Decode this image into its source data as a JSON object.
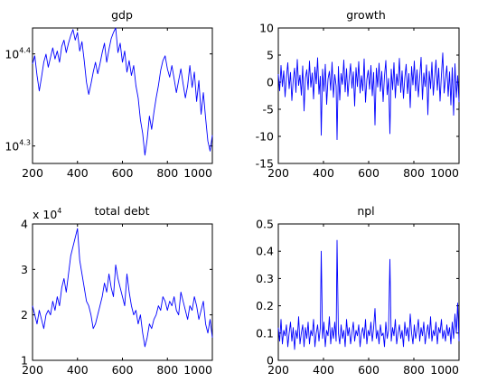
{
  "line_color": "#0000ff",
  "chart_data": [
    {
      "type": "line",
      "title": "gdp",
      "yscale": "log",
      "xlim": [
        200,
        1000
      ],
      "ylim": [
        19100,
        26800
      ],
      "xticks": [
        200,
        400,
        600,
        800,
        1000
      ],
      "xtick_labels": [
        "200",
        "400",
        "600",
        "800",
        "1000"
      ],
      "yticks": [
        {
          "value": 19953,
          "base": "10",
          "exp": "4.3"
        },
        {
          "value": 25119,
          "base": "10",
          "exp": "4.4"
        }
      ],
      "grid": false,
      "series": [
        {
          "x": [
            200,
            210,
            220,
            230,
            240,
            250,
            260,
            270,
            280,
            290,
            300,
            310,
            320,
            330,
            340,
            350,
            360,
            370,
            380,
            390,
            400,
            410,
            420,
            430,
            440,
            450,
            460,
            470,
            480,
            490,
            500,
            510,
            520,
            530,
            540,
            550,
            560,
            570,
            580,
            590,
            600,
            610,
            620,
            630,
            640,
            650,
            660,
            670,
            680,
            690,
            700,
            710,
            720,
            730,
            740,
            750,
            760,
            770,
            780,
            790,
            800,
            810,
            820,
            830,
            840,
            850,
            860,
            870,
            880,
            890,
            900,
            910,
            920,
            930,
            940,
            950,
            960,
            970,
            980,
            990,
            1000
          ],
          "y": [
            24500,
            25000,
            23800,
            22900,
            23700,
            24600,
            25100,
            24300,
            24900,
            25500,
            24800,
            25300,
            24600,
            25600,
            26000,
            25200,
            25800,
            26300,
            26700,
            26000,
            26500,
            25300,
            25900,
            24700,
            23400,
            22700,
            23300,
            24000,
            24600,
            23900,
            24500,
            25200,
            25800,
            24600,
            25400,
            26100,
            26500,
            26800,
            25200,
            25800,
            24600,
            25300,
            24000,
            24700,
            23800,
            24400,
            23200,
            22500,
            21300,
            20600,
            19500,
            20300,
            21500,
            20800,
            21700,
            22500,
            23200,
            24100,
            24700,
            25000,
            24200,
            23700,
            24400,
            23600,
            22800,
            23500,
            24200,
            23300,
            22500,
            23200,
            24400,
            23100,
            24000,
            22300,
            23500,
            21600,
            22800,
            21400,
            20200,
            19700,
            20500
          ]
        }
      ]
    },
    {
      "type": "line",
      "title": "growth",
      "xlim": [
        200,
        1000
      ],
      "ylim": [
        -15,
        10
      ],
      "xticks": [
        200,
        400,
        600,
        800,
        1000
      ],
      "xtick_labels": [
        "200",
        "400",
        "600",
        "800",
        "1000"
      ],
      "yticks": [
        -15,
        -10,
        -5,
        0,
        5,
        10
      ],
      "ytick_labels": [
        "-15",
        "-10",
        "-5",
        "0",
        "5",
        "10"
      ],
      "grid": false,
      "series": [
        {
          "x": [
            200,
            206,
            212,
            218,
            224,
            230,
            236,
            242,
            248,
            254,
            260,
            266,
            272,
            278,
            284,
            290,
            296,
            302,
            308,
            314,
            320,
            326,
            332,
            338,
            344,
            350,
            356,
            362,
            368,
            374,
            380,
            386,
            390,
            396,
            402,
            408,
            414,
            420,
            426,
            432,
            438,
            444,
            450,
            456,
            460,
            466,
            472,
            478,
            484,
            490,
            496,
            502,
            508,
            514,
            520,
            526,
            532,
            538,
            544,
            550,
            556,
            562,
            568,
            574,
            580,
            586,
            592,
            598,
            604,
            610,
            616,
            622,
            628,
            634,
            640,
            646,
            652,
            658,
            664,
            670,
            676,
            682,
            688,
            694,
            700,
            706,
            712,
            718,
            724,
            730,
            736,
            742,
            748,
            754,
            760,
            766,
            772,
            778,
            784,
            790,
            796,
            802,
            808,
            814,
            820,
            826,
            832,
            838,
            844,
            850,
            856,
            862,
            868,
            874,
            880,
            886,
            892,
            898,
            904,
            910,
            916,
            922,
            928,
            934,
            940,
            946,
            952,
            958,
            964,
            970,
            976,
            982,
            988,
            994,
            1000
          ],
          "y": [
            1.5,
            -1.6,
            3.1,
            -0.8,
            2.1,
            -2.7,
            0.9,
            3.6,
            -1.2,
            1.8,
            -3.4,
            0.4,
            2.6,
            -1.9,
            4.2,
            -0.6,
            1.3,
            -2.4,
            3.0,
            -5.3,
            0.8,
            2.3,
            -1.4,
            3.9,
            -0.9,
            1.7,
            -3.1,
            2.8,
            -0.3,
            4.5,
            -2.2,
            1.1,
            -9.8,
            2.4,
            -1.7,
            3.3,
            -4.1,
            0.6,
            2.0,
            -1.5,
            3.7,
            -2.8,
            1.4,
            -0.7,
            -10.6,
            2.9,
            -3.3,
            1.6,
            -0.4,
            4.1,
            -1.8,
            2.5,
            -2.6,
            0.9,
            3.4,
            -1.1,
            1.9,
            -4.4,
            2.7,
            -0.8,
            3.8,
            -2.0,
            1.2,
            -1.6,
            4.3,
            -3.7,
            0.5,
            2.2,
            -1.3,
            3.1,
            -2.5,
            1.8,
            -7.9,
            2.6,
            -0.9,
            3.5,
            -1.7,
            2.0,
            -3.6,
            1.1,
            4.0,
            -2.3,
            0.7,
            -9.5,
            2.4,
            -1.4,
            3.6,
            -2.9,
            1.5,
            -0.6,
            4.4,
            -1.9,
            2.1,
            -3.0,
            0.8,
            3.3,
            -2.1,
            1.6,
            -4.7,
            2.9,
            -0.5,
            3.9,
            -1.6,
            2.3,
            -2.7,
            1.0,
            4.6,
            -3.2,
            1.7,
            -0.8,
            3.2,
            -6.0,
            2.0,
            -1.2,
            3.7,
            -2.4,
            0.9,
            4.1,
            -1.5,
            2.6,
            -3.5,
            1.3,
            5.4,
            -2.0,
            0.6,
            3.0,
            -2.6,
            1.9,
            -4.2,
            2.7,
            -6.1,
            3.4,
            -2.8,
            1.2,
            -3.7
          ]
        }
      ]
    },
    {
      "type": "line",
      "title": "total debt",
      "xlim": [
        200,
        1000
      ],
      "ylim": [
        1,
        4
      ],
      "multiplier": {
        "base": "x 10",
        "exp": "4"
      },
      "xticks": [
        200,
        400,
        600,
        800,
        1000
      ],
      "xtick_labels": [
        "200",
        "400",
        "600",
        "800",
        "1000"
      ],
      "yticks": [
        1,
        2,
        3,
        4
      ],
      "ytick_labels": [
        "1",
        "2",
        "3",
        "4"
      ],
      "grid": false,
      "series": [
        {
          "x": [
            200,
            210,
            220,
            230,
            240,
            250,
            260,
            270,
            280,
            290,
            300,
            310,
            320,
            330,
            340,
            350,
            360,
            370,
            380,
            390,
            400,
            410,
            420,
            430,
            440,
            450,
            460,
            470,
            480,
            490,
            500,
            510,
            520,
            530,
            540,
            550,
            560,
            570,
            580,
            590,
            600,
            610,
            620,
            630,
            640,
            650,
            660,
            670,
            680,
            690,
            700,
            710,
            720,
            730,
            740,
            750,
            760,
            770,
            780,
            790,
            800,
            810,
            820,
            830,
            840,
            850,
            860,
            870,
            880,
            890,
            900,
            910,
            920,
            930,
            940,
            950,
            960,
            970,
            980,
            990,
            1000
          ],
          "y": [
            2.2,
            2.0,
            1.8,
            2.1,
            1.9,
            1.7,
            2.0,
            2.1,
            2.0,
            2.3,
            2.1,
            2.4,
            2.2,
            2.6,
            2.8,
            2.5,
            2.9,
            3.3,
            3.5,
            3.7,
            3.9,
            3.2,
            2.9,
            2.6,
            2.3,
            2.2,
            2.0,
            1.7,
            1.8,
            2.0,
            2.2,
            2.4,
            2.7,
            2.5,
            2.9,
            2.6,
            2.4,
            3.1,
            2.8,
            2.6,
            2.4,
            2.2,
            2.9,
            2.5,
            2.2,
            2.0,
            2.1,
            1.8,
            2.0,
            1.6,
            1.3,
            1.5,
            1.8,
            1.7,
            1.9,
            2.0,
            2.2,
            2.1,
            2.4,
            2.3,
            2.1,
            2.3,
            2.2,
            2.4,
            2.1,
            2.0,
            2.5,
            2.3,
            2.1,
            1.9,
            2.2,
            2.1,
            2.4,
            2.2,
            1.9,
            2.1,
            2.3,
            1.8,
            1.6,
            1.9,
            1.5
          ]
        }
      ]
    },
    {
      "type": "line",
      "title": "npl",
      "xlim": [
        200,
        1000
      ],
      "ylim": [
        0,
        0.5
      ],
      "xticks": [
        200,
        400,
        600,
        800,
        1000
      ],
      "xtick_labels": [
        "200",
        "400",
        "600",
        "800",
        "1000"
      ],
      "yticks": [
        0,
        0.1,
        0.2,
        0.3,
        0.4,
        0.5
      ],
      "ytick_labels": [
        "0",
        "0.1",
        "0.2",
        "0.3",
        "0.4",
        "0.5"
      ],
      "grid": false,
      "series": [
        {
          "x": [
            200,
            206,
            212,
            218,
            224,
            230,
            236,
            242,
            248,
            254,
            260,
            266,
            272,
            278,
            284,
            290,
            296,
            302,
            308,
            314,
            320,
            326,
            332,
            338,
            344,
            350,
            356,
            362,
            368,
            374,
            380,
            386,
            390,
            396,
            402,
            408,
            414,
            420,
            426,
            432,
            438,
            444,
            450,
            456,
            460,
            466,
            472,
            478,
            484,
            490,
            496,
            502,
            508,
            514,
            520,
            526,
            532,
            538,
            544,
            550,
            556,
            562,
            568,
            574,
            580,
            586,
            592,
            598,
            604,
            610,
            616,
            622,
            628,
            634,
            640,
            646,
            652,
            658,
            664,
            670,
            676,
            682,
            688,
            694,
            700,
            706,
            712,
            718,
            724,
            730,
            736,
            742,
            748,
            754,
            760,
            766,
            772,
            778,
            784,
            790,
            796,
            802,
            808,
            814,
            820,
            826,
            832,
            838,
            844,
            850,
            856,
            862,
            868,
            874,
            880,
            886,
            892,
            898,
            904,
            910,
            916,
            922,
            928,
            934,
            940,
            946,
            952,
            958,
            964,
            970,
            976,
            982,
            988,
            994,
            1000
          ],
          "y": [
            0.12,
            0.07,
            0.15,
            0.06,
            0.11,
            0.09,
            0.13,
            0.05,
            0.1,
            0.14,
            0.07,
            0.12,
            0.04,
            0.11,
            0.08,
            0.16,
            0.06,
            0.1,
            0.13,
            0.05,
            0.12,
            0.08,
            0.14,
            0.06,
            0.11,
            0.09,
            0.15,
            0.05,
            0.1,
            0.13,
            0.07,
            0.12,
            0.4,
            0.08,
            0.14,
            0.05,
            0.11,
            0.09,
            0.16,
            0.06,
            0.12,
            0.08,
            0.14,
            0.07,
            0.44,
            0.1,
            0.06,
            0.13,
            0.08,
            0.11,
            0.05,
            0.15,
            0.09,
            0.12,
            0.06,
            0.1,
            0.14,
            0.07,
            0.11,
            0.09,
            0.13,
            0.05,
            0.1,
            0.12,
            0.08,
            0.15,
            0.06,
            0.11,
            0.09,
            0.14,
            0.07,
            0.12,
            0.19,
            0.08,
            0.11,
            0.06,
            0.13,
            0.09,
            0.1,
            0.05,
            0.14,
            0.08,
            0.11,
            0.37,
            0.07,
            0.12,
            0.09,
            0.15,
            0.06,
            0.1,
            0.13,
            0.08,
            0.11,
            0.05,
            0.14,
            0.09,
            0.12,
            0.07,
            0.17,
            0.1,
            0.06,
            0.13,
            0.08,
            0.11,
            0.15,
            0.07,
            0.12,
            0.09,
            0.14,
            0.06,
            0.1,
            0.13,
            0.08,
            0.16,
            0.07,
            0.11,
            0.09,
            0.14,
            0.06,
            0.12,
            0.1,
            0.15,
            0.08,
            0.11,
            0.07,
            0.13,
            0.09,
            0.12,
            0.06,
            0.14,
            0.08,
            0.17,
            0.1,
            0.21,
            0.07
          ]
        }
      ]
    }
  ]
}
